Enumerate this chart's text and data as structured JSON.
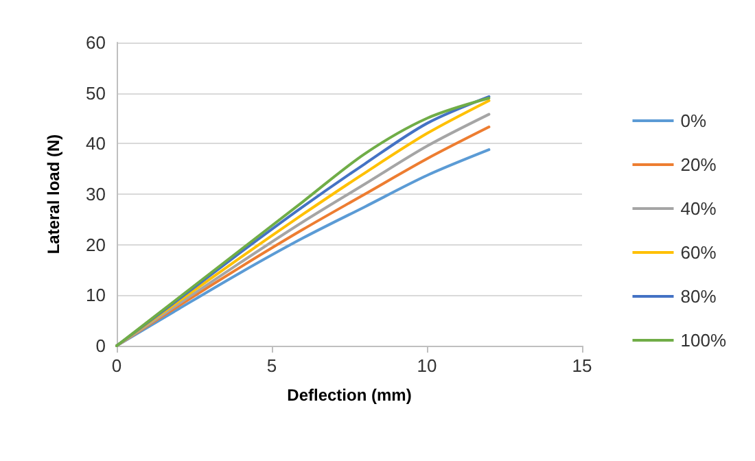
{
  "chart_data": {
    "type": "line",
    "xlabel": "Deflection (mm)",
    "ylabel": "Lateral load (N)",
    "x": [
      0,
      2,
      4,
      6,
      8,
      10,
      12
    ],
    "series": [
      {
        "name": "0%",
        "color": "#5b9bd5",
        "values": [
          0,
          7.3,
          14.5,
          21.3,
          27.5,
          33.7,
          38.8
        ]
      },
      {
        "name": "20%",
        "color": "#ed7d31",
        "values": [
          0,
          7.9,
          15.6,
          23,
          30,
          37,
          43.3
        ]
      },
      {
        "name": "40%",
        "color": "#a5a5a5",
        "values": [
          0,
          8.3,
          16.5,
          24.5,
          32,
          39.5,
          45.8
        ]
      },
      {
        "name": "60%",
        "color": "#ffc000",
        "values": [
          0,
          8.8,
          17.5,
          26,
          34.2,
          42,
          48.5
        ]
      },
      {
        "name": "80%",
        "color": "#4472c4",
        "values": [
          0,
          9.2,
          18.5,
          27.5,
          36,
          44,
          49.3
        ]
      },
      {
        "name": "100%",
        "color": "#70ad47",
        "values": [
          0,
          9.5,
          19,
          28.5,
          38,
          45,
          49
        ]
      }
    ],
    "xlim": [
      0,
      15
    ],
    "xticks": [
      0,
      5,
      10,
      15
    ],
    "ylim": [
      0,
      60
    ],
    "yticks": [
      0,
      10,
      20,
      30,
      40,
      50,
      60
    ],
    "grid": "y",
    "legend": "right",
    "marker": "none",
    "line_style": "solid"
  }
}
